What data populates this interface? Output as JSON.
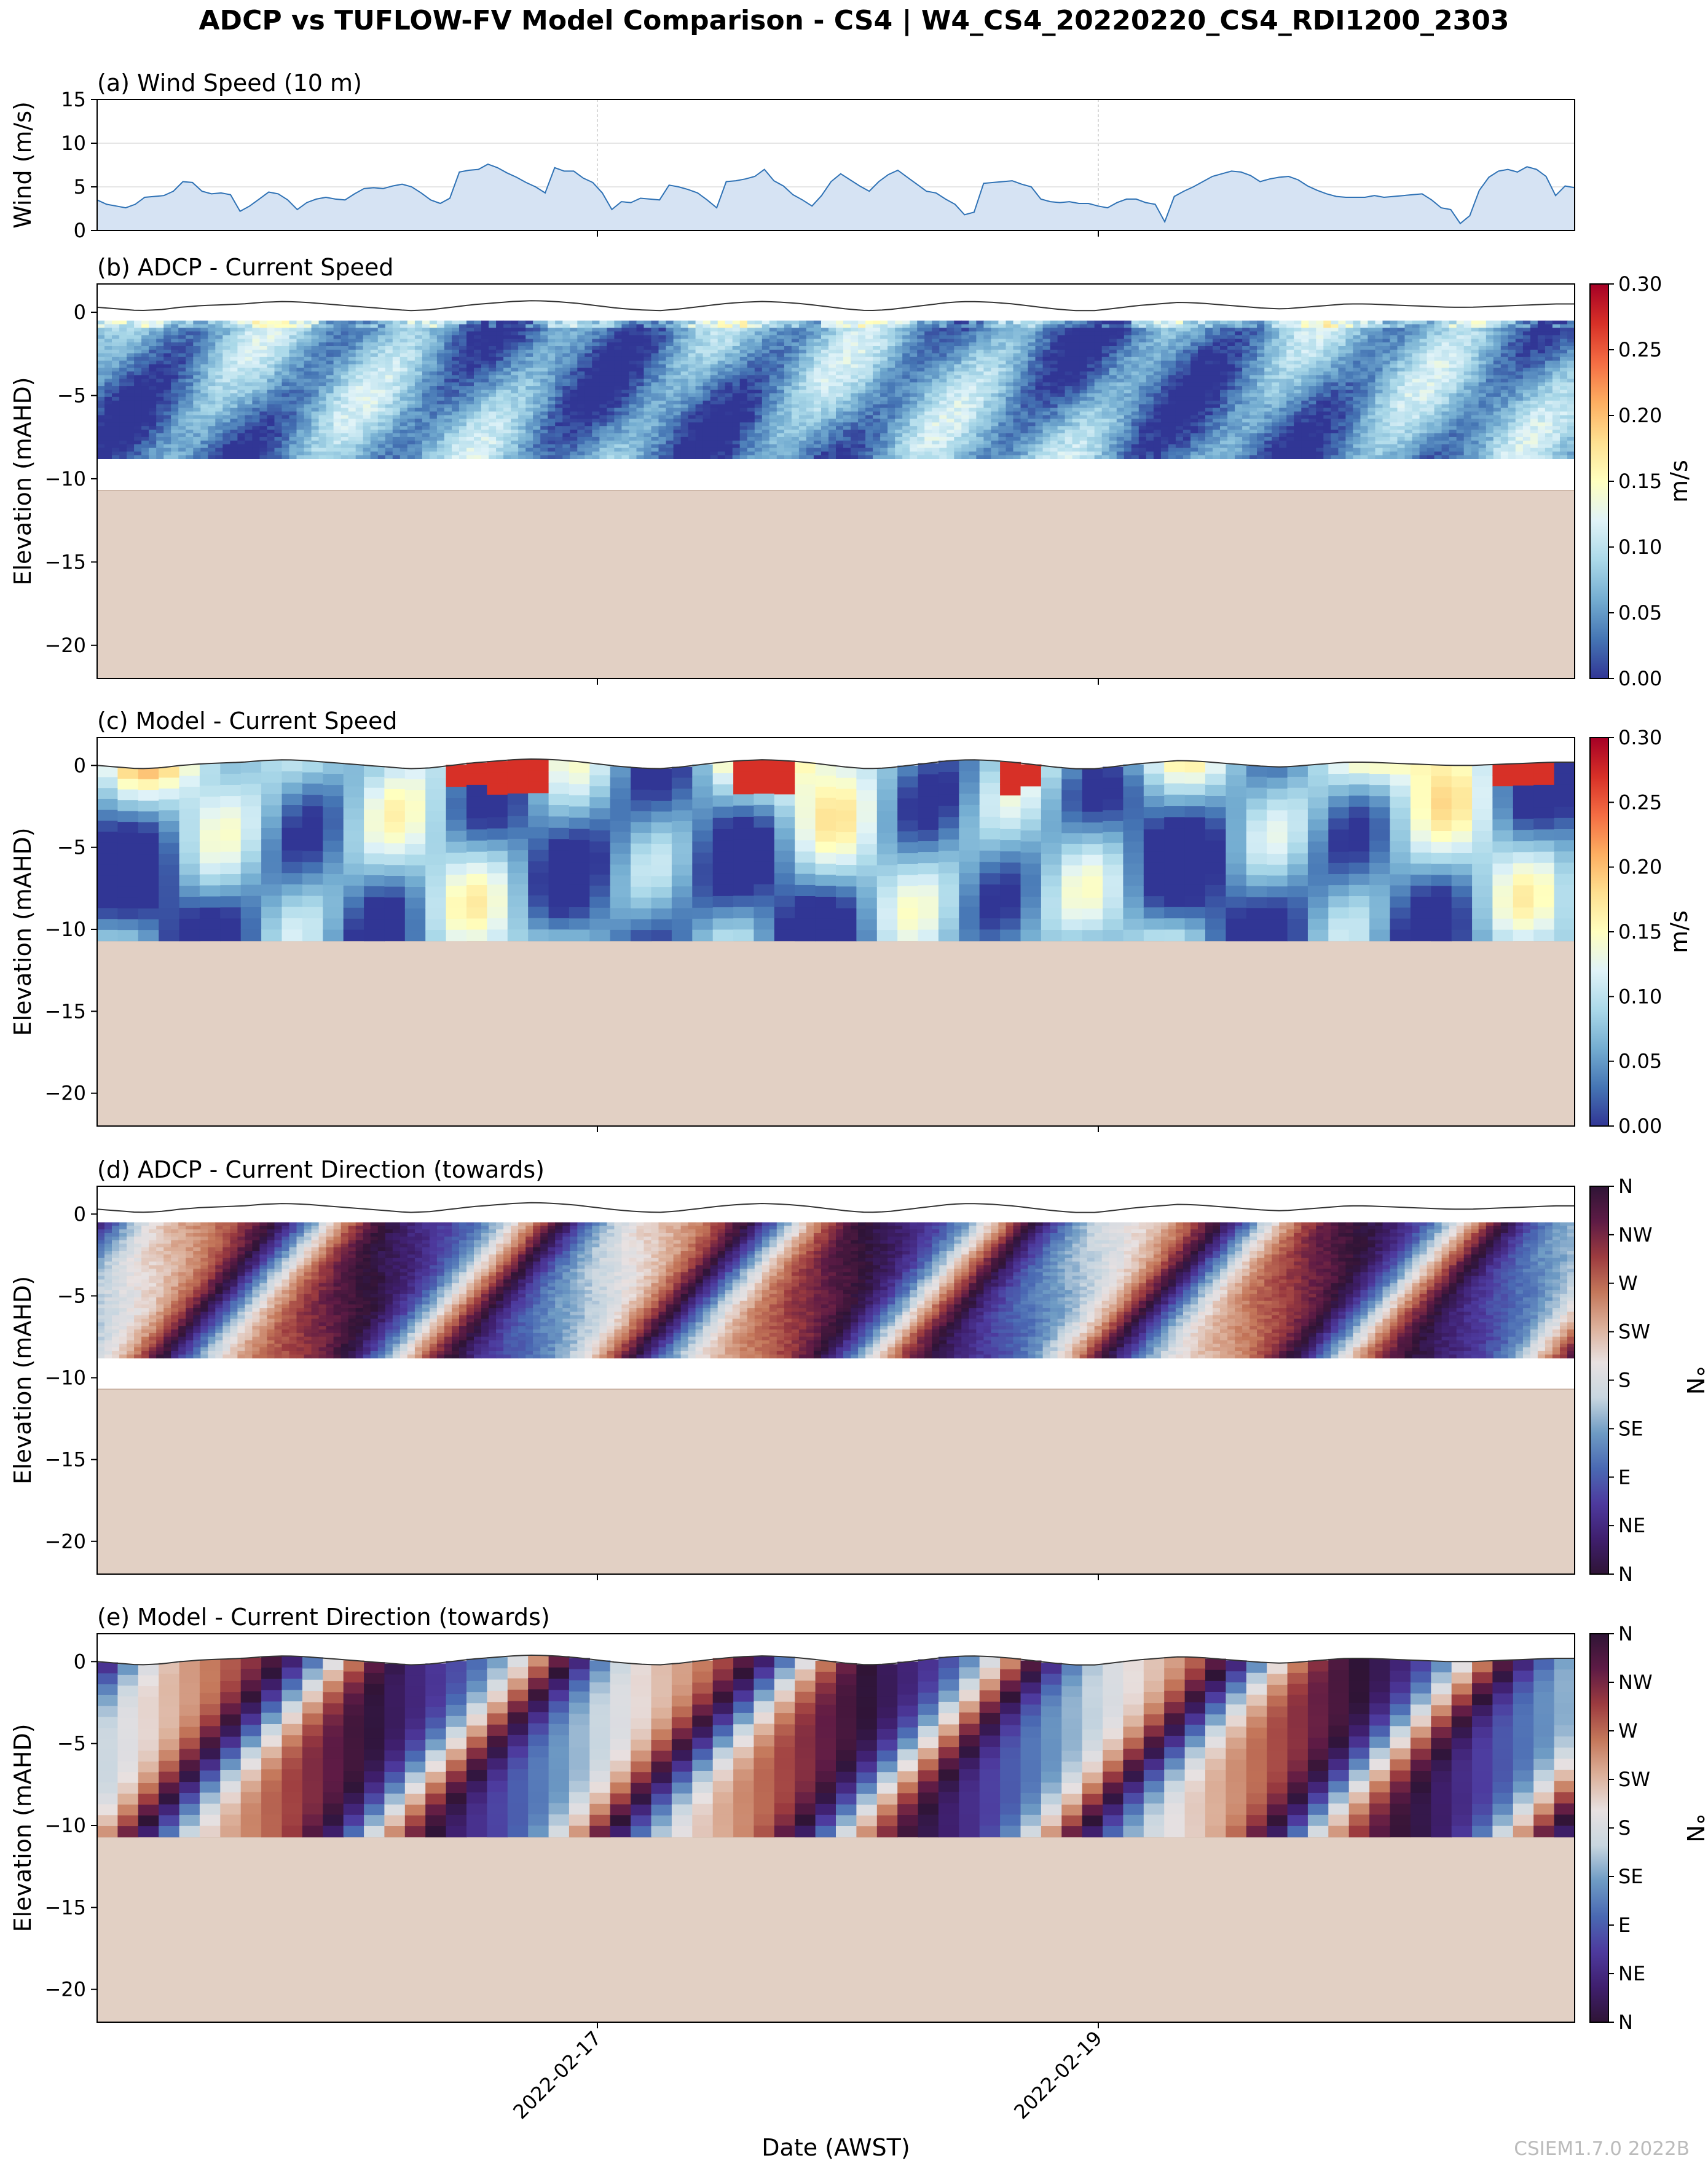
{
  "title": "ADCP vs TUFLOW-FV Model Comparison - CS4 | W4_CS4_20220220_CS4_RDI1200_2303",
  "footer": "CSIEM1.7.0 2022B",
  "colors": {
    "seabed": "#e2d0c4",
    "wind_fill": "#d6e3f3",
    "wind_line": "#2f72b5",
    "surface_line": "#333333"
  },
  "colormaps": {
    "speed": [
      "#313695",
      "#4575b4",
      "#74add1",
      "#abd9e9",
      "#e0f3f8",
      "#ffffbf",
      "#fee090",
      "#fdae61",
      "#f46d43",
      "#d73027",
      "#a50026"
    ],
    "direction": [
      "#2f1436",
      "#3f1f6e",
      "#4d3a9e",
      "#4a69b3",
      "#6e9bc4",
      "#c8d6e0",
      "#e8e1e1",
      "#dcb09a",
      "#c4775a",
      "#9c3b3f",
      "#5e1b45",
      "#2f1436"
    ]
  },
  "chart_data": [
    {
      "type": "area",
      "panel": "a",
      "title": "(a) Wind Speed (10 m)",
      "ylabel": "Wind (m/s)",
      "ylim": [
        0,
        15
      ],
      "yticks": [
        0,
        5,
        10,
        15
      ],
      "grid": true,
      "x_range": [
        "2022-02-15 00:00",
        "2022-02-20 21:00"
      ],
      "x_step_hours": 2,
      "values": [
        3.5,
        3.0,
        2.8,
        2.6,
        3.0,
        3.8,
        3.9,
        4.0,
        4.5,
        5.6,
        5.5,
        4.5,
        4.2,
        4.3,
        4.1,
        2.2,
        2.8,
        3.6,
        4.4,
        4.2,
        3.5,
        2.4,
        3.2,
        3.6,
        3.8,
        3.6,
        3.5,
        4.2,
        4.8,
        4.9,
        4.8,
        5.1,
        5.3,
        5.0,
        4.3,
        3.5,
        3.1,
        3.7,
        6.7,
        6.9,
        7.0,
        7.6,
        7.2,
        6.6,
        6.1,
        5.5,
        5.0,
        4.3,
        7.2,
        6.8,
        6.8,
        6.0,
        5.5,
        4.3,
        2.4,
        3.3,
        3.2,
        3.7,
        3.6,
        3.5,
        5.2,
        5.0,
        4.7,
        4.3,
        3.5,
        2.6,
        5.6,
        5.7,
        5.9,
        6.2,
        7.0,
        5.7,
        5.1,
        4.1,
        3.5,
        2.8,
        4.0,
        5.6,
        6.5,
        5.8,
        5.1,
        4.5,
        5.6,
        6.4,
        6.9,
        6.1,
        5.3,
        4.5,
        4.3,
        3.6,
        3.0,
        1.8,
        2.1,
        5.4,
        5.5,
        5.6,
        5.7,
        5.3,
        5.0,
        3.6,
        3.3,
        3.2,
        3.3,
        3.1,
        3.1,
        2.8,
        2.6,
        3.2,
        3.6,
        3.6,
        3.2,
        3.0,
        1.0,
        3.9,
        4.5,
        5.0,
        5.6,
        6.2,
        6.5,
        6.8,
        6.7,
        6.3,
        5.6,
        5.9,
        6.1,
        6.2,
        5.8,
        5.1,
        4.6,
        4.2,
        3.9,
        3.8,
        3.8,
        3.8,
        4.0,
        3.8,
        3.9,
        4.0,
        4.1,
        4.2,
        3.5,
        2.6,
        2.4,
        0.8,
        1.7,
        4.6,
        6.1,
        6.8,
        7.0,
        6.7,
        7.3,
        7.0,
        6.2,
        4.0,
        5.1,
        4.9
      ]
    },
    {
      "type": "heatmap",
      "panel": "b",
      "title": "(b) ADCP - Current Speed",
      "ylabel": "Elevation (mAHD)",
      "ylim": [
        -22,
        1.7
      ],
      "yticks": [
        0,
        -5,
        -10,
        -15,
        -20
      ],
      "colorbar_label": "m/s",
      "colorbar_ticks": [
        "0.00",
        "0.05",
        "0.10",
        "0.15",
        "0.20",
        "0.25",
        "0.30"
      ],
      "vmin": 0,
      "vmax": 0.3,
      "data_top": -0.5,
      "data_bottom": -8.8,
      "seabed": -10.7
    },
    {
      "type": "heatmap",
      "panel": "c",
      "title": "(c) Model - Current Speed",
      "ylabel": "Elevation (mAHD)",
      "ylim": [
        -22,
        1.7
      ],
      "yticks": [
        0,
        -5,
        -10,
        -15,
        -20
      ],
      "colorbar_label": "m/s",
      "colorbar_ticks": [
        "0.00",
        "0.05",
        "0.10",
        "0.15",
        "0.20",
        "0.25",
        "0.30"
      ],
      "vmin": 0,
      "vmax": 0.3,
      "data_top": "surface",
      "data_bottom": -10.7,
      "seabed": -10.7
    },
    {
      "type": "heatmap",
      "panel": "d",
      "title": "(d) ADCP - Current Direction (towards)",
      "ylabel": "Elevation (mAHD)",
      "ylim": [
        -22,
        1.7
      ],
      "yticks": [
        0,
        -5,
        -10,
        -15,
        -20
      ],
      "colorbar_label": "°N",
      "colorbar_ticks": [
        "N",
        "NE",
        "E",
        "SE",
        "S",
        "SW",
        "W",
        "NW",
        "N"
      ],
      "data_top": -0.5,
      "data_bottom": -8.8,
      "seabed": -10.7
    },
    {
      "type": "heatmap",
      "panel": "e",
      "title": "(e) Model - Current Direction (towards)",
      "ylabel": "Elevation (mAHD)",
      "ylim": [
        -22,
        1.7
      ],
      "yticks": [
        0,
        -5,
        -10,
        -15,
        -20
      ],
      "colorbar_label": "°N",
      "colorbar_ticks": [
        "N",
        "NE",
        "E",
        "SE",
        "S",
        "SW",
        "W",
        "NW",
        "N"
      ],
      "data_top": "surface",
      "data_bottom": -10.7,
      "seabed": -10.7
    }
  ],
  "surface_elevation": [
    0.0,
    -0.1,
    -0.2,
    -0.15,
    0.0,
    0.1,
    0.15,
    0.2,
    0.3,
    0.35,
    0.3,
    0.2,
    0.1,
    0.0,
    -0.1,
    -0.2,
    -0.15,
    0.0,
    0.15,
    0.25,
    0.35,
    0.4,
    0.35,
    0.25,
    0.1,
    -0.05,
    -0.15,
    -0.2,
    -0.1,
    0.05,
    0.2,
    0.3,
    0.35,
    0.3,
    0.2,
    0.05,
    -0.1,
    -0.2,
    -0.15,
    0.0,
    0.15,
    0.3,
    0.35,
    0.3,
    0.2,
    0.05,
    -0.1,
    -0.2,
    -0.2,
    -0.05,
    0.1,
    0.2,
    0.3,
    0.25,
    0.15,
    0.05,
    -0.05,
    -0.1,
    0.0,
    0.1,
    0.2,
    0.2,
    0.15,
    0.1,
    0.05,
    0.0,
    0.0,
    0.05,
    0.1,
    0.15,
    0.2,
    0.2
  ],
  "x_axis": {
    "label": "Date (AWST)",
    "ticks": [
      "2022-02-17",
      "2022-02-19"
    ]
  }
}
